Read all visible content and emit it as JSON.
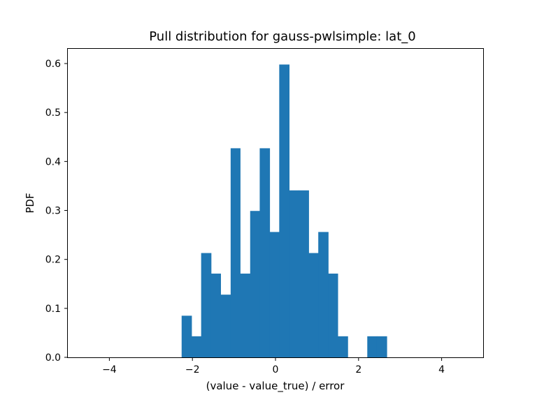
{
  "chart_data": {
    "type": "bar",
    "title": "Pull distribution for gauss-pwlsimple: lat_0",
    "xlabel": "(value - value_true) / error",
    "ylabel": "PDF",
    "xlim": [
      -5,
      5
    ],
    "ylim": [
      0,
      0.63
    ],
    "xticks": [
      -4,
      -2,
      0,
      2,
      4
    ],
    "xtick_labels": [
      "−4",
      "−2",
      "0",
      "2",
      "4"
    ],
    "yticks": [
      0.0,
      0.1,
      0.2,
      0.3,
      0.4,
      0.5,
      0.6
    ],
    "ytick_labels": [
      "0.0",
      "0.1",
      "0.2",
      "0.3",
      "0.4",
      "0.5",
      "0.6"
    ],
    "bar_color": "#1f77b4",
    "grid": false,
    "bins": [
      {
        "x0": -2.26,
        "x1": -2.02,
        "value": 0.085
      },
      {
        "x0": -2.02,
        "x1": -1.79,
        "value": 0.043
      },
      {
        "x0": -1.79,
        "x1": -1.55,
        "value": 0.213
      },
      {
        "x0": -1.55,
        "x1": -1.32,
        "value": 0.171
      },
      {
        "x0": -1.32,
        "x1": -1.08,
        "value": 0.128
      },
      {
        "x0": -1.08,
        "x1": -0.85,
        "value": 0.427
      },
      {
        "x0": -0.85,
        "x1": -0.61,
        "value": 0.171
      },
      {
        "x0": -0.61,
        "x1": -0.38,
        "value": 0.299
      },
      {
        "x0": -0.38,
        "x1": -0.14,
        "value": 0.427
      },
      {
        "x0": -0.14,
        "x1": 0.09,
        "value": 0.256
      },
      {
        "x0": 0.09,
        "x1": 0.33,
        "value": 0.598
      },
      {
        "x0": 0.33,
        "x1": 0.56,
        "value": 0.341
      },
      {
        "x0": 0.56,
        "x1": 0.8,
        "value": 0.341
      },
      {
        "x0": 0.8,
        "x1": 1.03,
        "value": 0.213
      },
      {
        "x0": 1.03,
        "x1": 1.27,
        "value": 0.256
      },
      {
        "x0": 1.27,
        "x1": 1.5,
        "value": 0.171
      },
      {
        "x0": 1.5,
        "x1": 1.74,
        "value": 0.043
      },
      {
        "x0": 1.74,
        "x1": 1.97,
        "value": 0.0
      },
      {
        "x0": 1.97,
        "x1": 2.21,
        "value": 0.0
      },
      {
        "x0": 2.21,
        "x1": 2.44,
        "value": 0.043
      },
      {
        "x0": 2.44,
        "x1": 2.68,
        "value": 0.043
      }
    ]
  }
}
